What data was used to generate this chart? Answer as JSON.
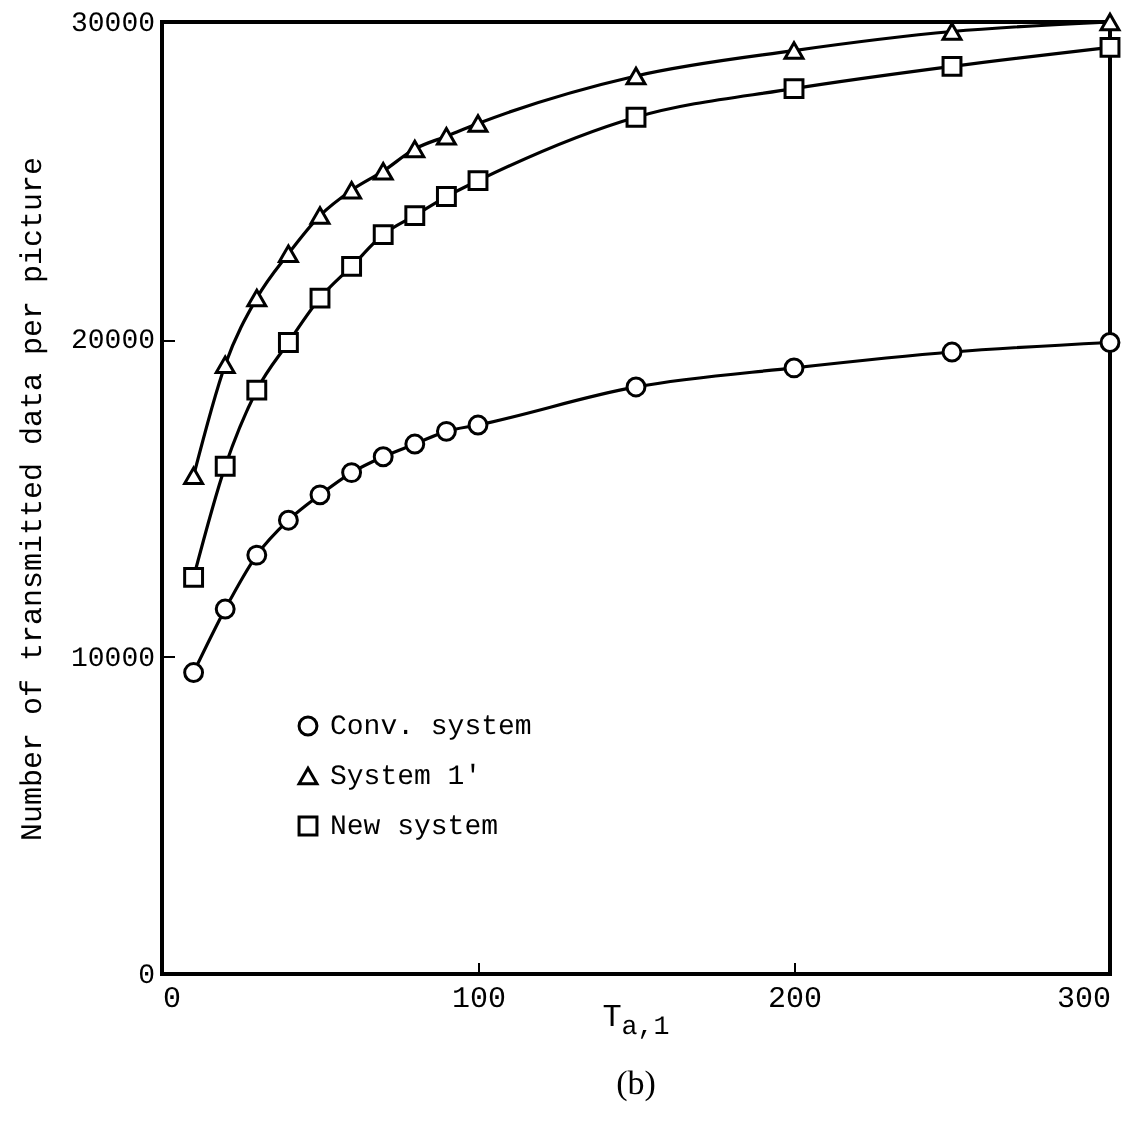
{
  "chart_data": {
    "type": "line",
    "xlabel": "T$_{a,1}$",
    "ylabel": "Number of transmitted data per picture",
    "annotations": [
      "(b)"
    ],
    "x": [
      10,
      20,
      30,
      40,
      50,
      60,
      70,
      80,
      90,
      100,
      150,
      200,
      250,
      300
    ],
    "series": [
      {
        "name": "Conv. system",
        "color": "#000000",
        "marker": "circle",
        "values": [
          9500,
          11500,
          13200,
          14300,
          15100,
          15800,
          16300,
          16700,
          17100,
          17300,
          18500,
          19100,
          19600,
          19900
        ]
      },
      {
        "name": "System 1'",
        "color": "#000000",
        "marker": "triangle",
        "values": [
          15700,
          19200,
          21300,
          22700,
          23900,
          24700,
          25300,
          26000,
          26400,
          26800,
          28300,
          29100,
          29700,
          30000
        ]
      },
      {
        "name": "New system",
        "color": "#000000",
        "marker": "square",
        "values": [
          12500,
          16000,
          18400,
          19900,
          21300,
          22300,
          23300,
          23900,
          24500,
          25000,
          27000,
          27900,
          28600,
          29200
        ]
      }
    ],
    "xlim": [
      0,
      300
    ],
    "xticks": [
      0,
      100,
      200,
      300
    ],
    "ylim": [
      0,
      30000
    ],
    "yticks": [
      0,
      10000,
      20000,
      30000
    ],
    "grid": false,
    "legend": "bottom left",
    "line_style": "solid"
  }
}
